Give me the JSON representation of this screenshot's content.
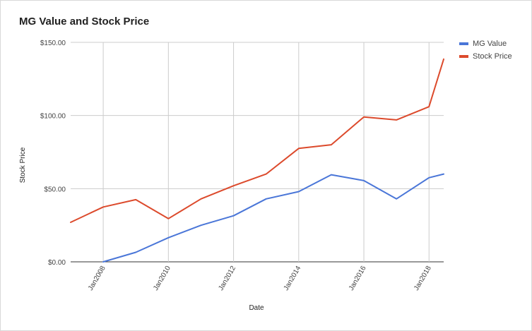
{
  "chart_data": {
    "type": "line",
    "title": "MG Value and Stock Price",
    "xlabel": "Date",
    "ylabel": "Stock Price",
    "x": [
      2007,
      2008,
      2009,
      2010,
      2011,
      2012,
      2013,
      2014,
      2015,
      2016,
      2017,
      2018,
      2018.45
    ],
    "x_ticks": [
      {
        "value": 2008,
        "label": "Jan2008"
      },
      {
        "value": 2010,
        "label": "Jan2010"
      },
      {
        "value": 2012,
        "label": "Jan2012"
      },
      {
        "value": 2014,
        "label": "Jan2014"
      },
      {
        "value": 2016,
        "label": "Jan2016"
      },
      {
        "value": 2018,
        "label": "Jan2018"
      }
    ],
    "y_ticks": [
      {
        "value": 0,
        "label": "$0.00"
      },
      {
        "value": 50,
        "label": "$50.00"
      },
      {
        "value": 100,
        "label": "$100.00"
      },
      {
        "value": 150,
        "label": "$150.00"
      }
    ],
    "xlim": [
      2007,
      2018.45
    ],
    "ylim": [
      0,
      150
    ],
    "grid": true,
    "legend_position": "right",
    "series": [
      {
        "name": "MG Value",
        "color": "#4a76d8",
        "points": [
          [
            2008,
            0
          ],
          [
            2009,
            6.5
          ],
          [
            2010,
            16.5
          ],
          [
            2011,
            25
          ],
          [
            2012,
            31.5
          ],
          [
            2013,
            43
          ],
          [
            2014,
            48
          ],
          [
            2015,
            59.5
          ],
          [
            2016,
            55.5
          ],
          [
            2017,
            43
          ],
          [
            2018,
            57.5
          ],
          [
            2018.45,
            60
          ]
        ]
      },
      {
        "name": "Stock Price",
        "color": "#dc4a2c",
        "points": [
          [
            2007,
            27
          ],
          [
            2008,
            37.5
          ],
          [
            2009,
            42.5
          ],
          [
            2010,
            29.5
          ],
          [
            2011,
            43
          ],
          [
            2012,
            52
          ],
          [
            2013,
            60
          ],
          [
            2014,
            77.5
          ],
          [
            2015,
            80
          ],
          [
            2016,
            99
          ],
          [
            2017,
            97
          ],
          [
            2018,
            106
          ],
          [
            2018.45,
            138.5
          ]
        ]
      }
    ]
  }
}
